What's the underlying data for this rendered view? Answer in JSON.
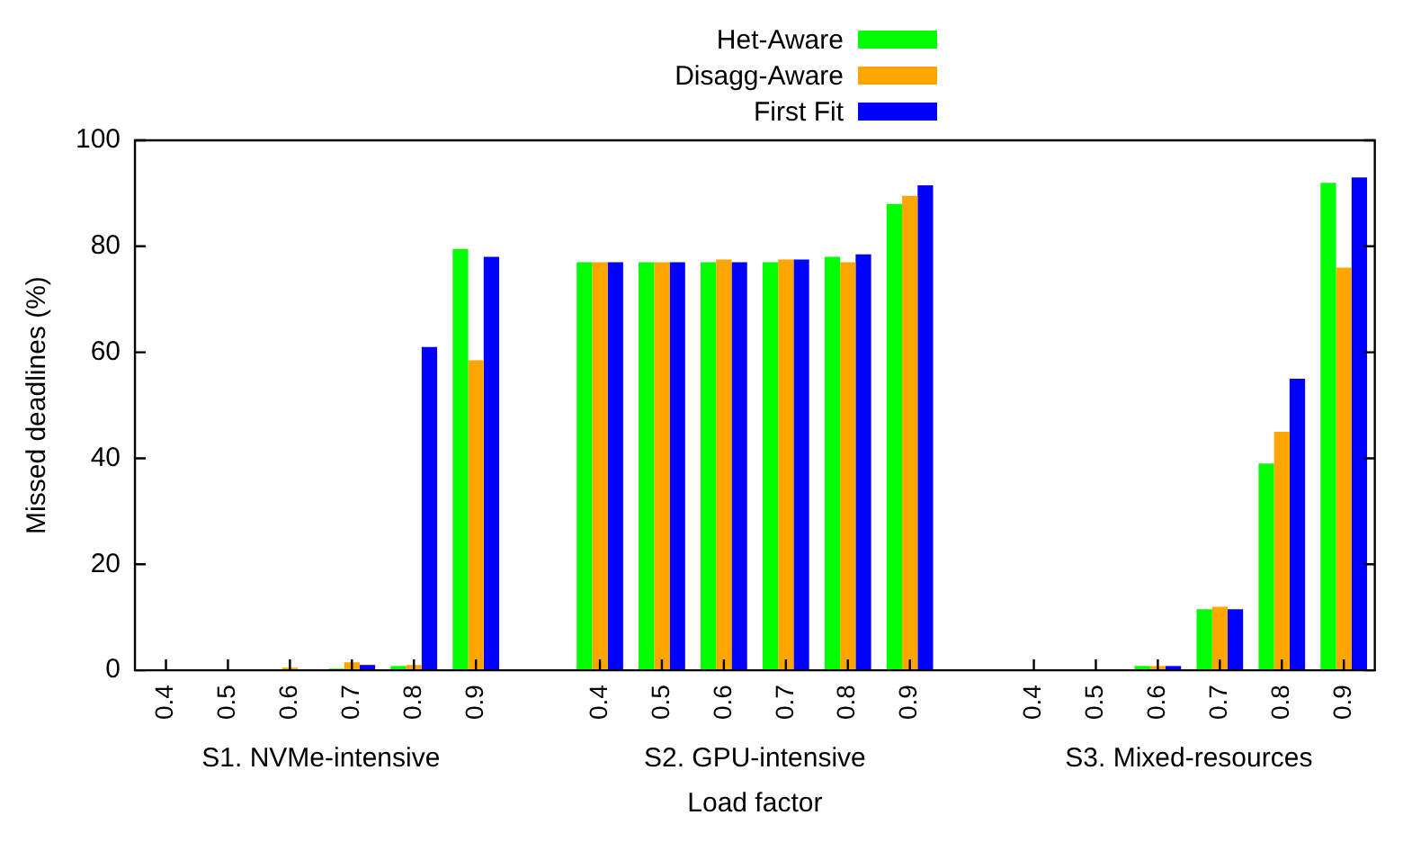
{
  "chart_data": {
    "type": "bar",
    "xlabel": "Load factor",
    "ylabel": "Missed deadlines (%)",
    "categories": [
      "0.4",
      "0.5",
      "0.6",
      "0.7",
      "0.8",
      "0.9",
      null,
      "0.4",
      "0.5",
      "0.6",
      "0.7",
      "0.8",
      "0.9",
      null,
      "0.4",
      "0.5",
      "0.6",
      "0.7",
      "0.8",
      "0.9"
    ],
    "series": [
      {
        "name": "Het-Aware",
        "color": "#00ff00",
        "values": [
          0,
          0,
          0,
          0.3,
          0.8,
          79.5,
          null,
          77,
          77,
          77,
          77,
          78,
          88,
          null,
          0,
          0,
          0.8,
          11.5,
          39,
          92
        ]
      },
      {
        "name": "Disagg-Aware",
        "color": "#ffa500",
        "values": [
          0.2,
          0,
          0.5,
          1.5,
          1,
          58.5,
          null,
          77,
          77,
          77.5,
          77.5,
          77,
          89.5,
          null,
          0,
          0,
          0.8,
          12,
          45,
          76
        ]
      },
      {
        "name": "First Fit",
        "color": "#0000ff",
        "values": [
          0,
          0,
          0,
          1,
          61,
          78,
          null,
          77,
          77,
          77,
          77.5,
          78.5,
          91.5,
          null,
          0,
          0,
          0.8,
          11.5,
          55,
          93
        ]
      }
    ],
    "annotations": [
      "S1. NVMe-intensive",
      "S2. GPU-intensive",
      "S3. Mixed-resources"
    ],
    "ylim": [
      0,
      100
    ],
    "yticks": [
      0,
      20,
      40,
      60,
      80,
      100
    ],
    "grid": false,
    "legend": "top"
  }
}
